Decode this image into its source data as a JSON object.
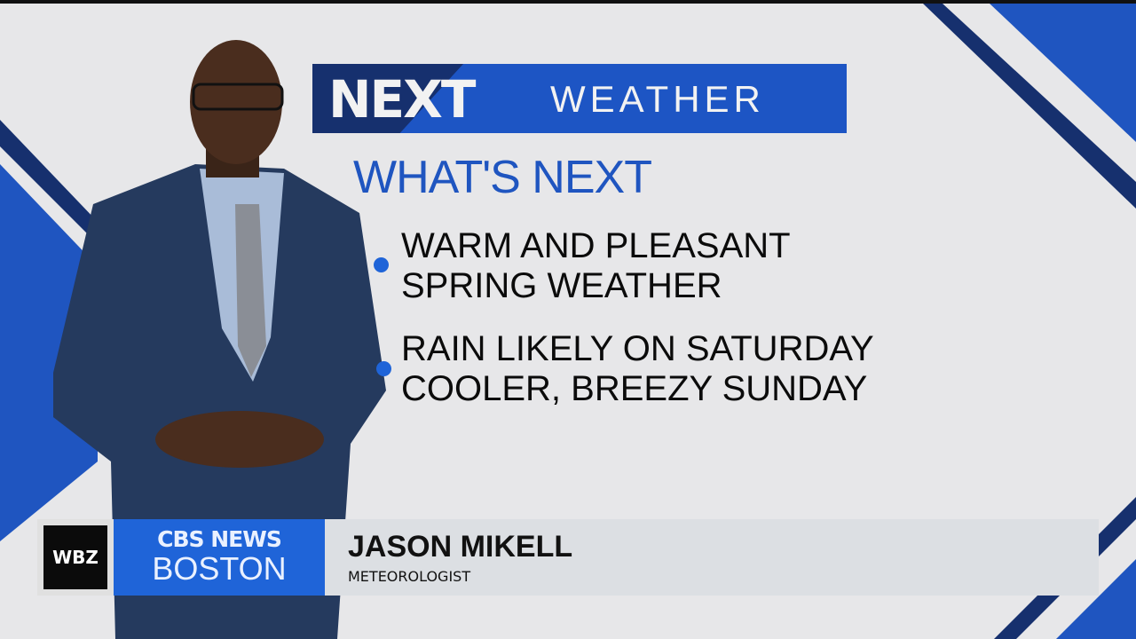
{
  "logo": {
    "next": "NEXT",
    "weather": "WEATHER"
  },
  "heading": "WHAT'S NEXT",
  "bullets": [
    {
      "line1": "WARM AND PLEASANT",
      "line2": "SPRING WEATHER"
    },
    {
      "line1": "RAIN LIKELY ON SATURDAY",
      "line2": "COOLER, BREEZY SUNDAY"
    }
  ],
  "lower_third": {
    "station": "WBZ",
    "network": "CBS NEWS",
    "city": "BOSTON",
    "name": "JASON MIKELL",
    "title": "METEOROLOGIST"
  },
  "colors": {
    "brand_blue": "#1f55c0",
    "navy": "#16306e",
    "background": "#e7e7e9"
  }
}
